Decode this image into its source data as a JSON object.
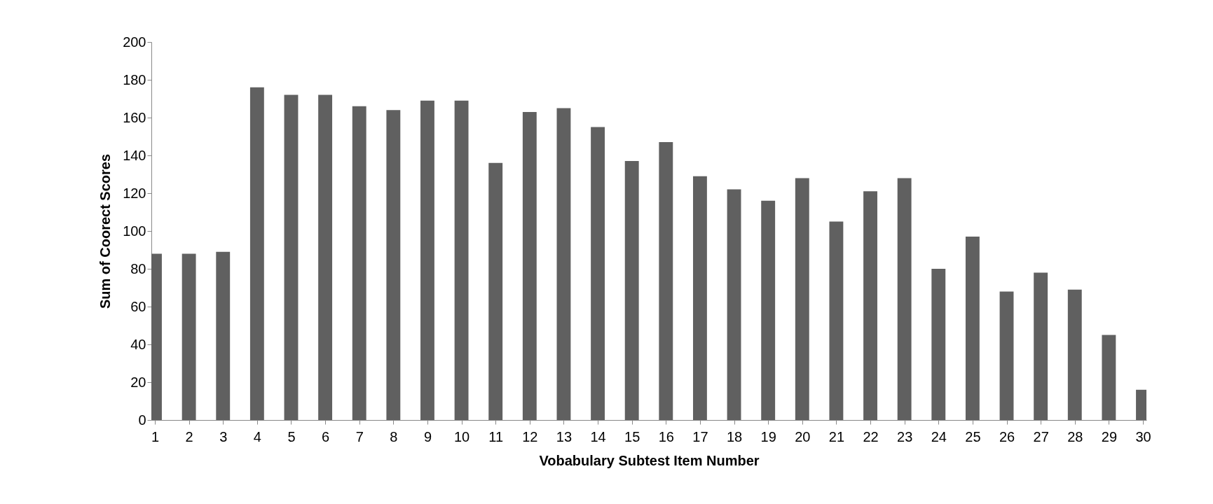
{
  "chart_data": {
    "type": "bar",
    "xlabel": "Vobabulary  Subtest Item Number",
    "ylabel": "Sum of Coorect Scores",
    "x": [
      1,
      2,
      3,
      4,
      5,
      6,
      7,
      8,
      9,
      10,
      11,
      12,
      13,
      14,
      15,
      16,
      17,
      18,
      19,
      20,
      21,
      22,
      23,
      24,
      25,
      26,
      27,
      28,
      29,
      30
    ],
    "values": [
      88,
      88,
      89,
      176,
      172,
      172,
      166,
      164,
      169,
      169,
      136,
      163,
      165,
      155,
      137,
      147,
      129,
      122,
      116,
      128,
      105,
      121,
      128,
      80,
      97,
      68,
      78,
      69,
      45,
      16
    ],
    "color": "#606060",
    "xlim": [
      1,
      30
    ],
    "xticks": [
      1,
      2,
      3,
      4,
      5,
      6,
      7,
      8,
      9,
      10,
      11,
      12,
      13,
      14,
      15,
      16,
      17,
      18,
      19,
      20,
      21,
      22,
      23,
      24,
      25,
      26,
      27,
      28,
      29,
      30
    ],
    "ylim": [
      0,
      200
    ],
    "yticks": [
      0,
      20,
      40,
      60,
      80,
      100,
      120,
      140,
      160,
      180,
      200
    ],
    "grid": false
  }
}
